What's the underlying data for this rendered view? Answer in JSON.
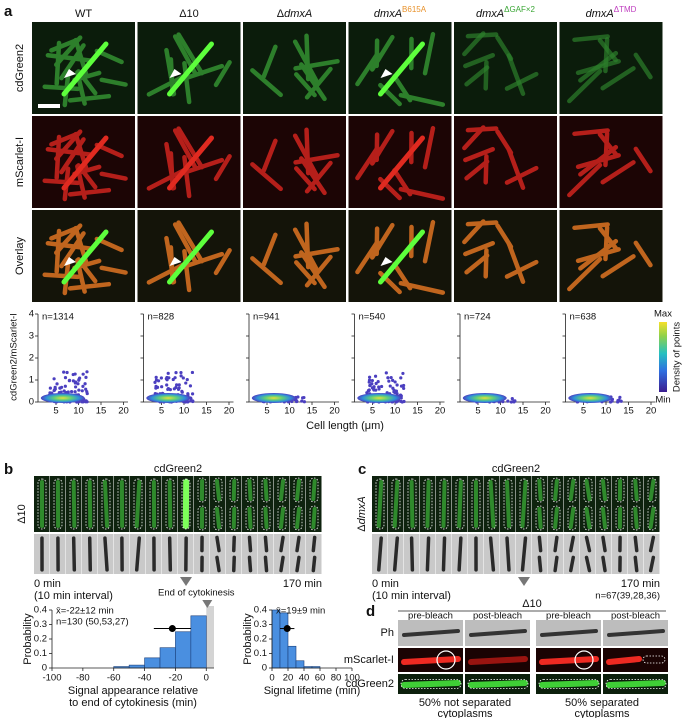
{
  "panel_a": {
    "label": "a",
    "columns": [
      {
        "pre": "WT"
      },
      {
        "pre": "Δ10"
      },
      {
        "pre": "Δ",
        "italic": "dmxA"
      },
      {
        "italic": "dmxA",
        "sup": "B615A",
        "sup_color": "#e8912a"
      },
      {
        "italic": "dmxA",
        "sup": "ΔGAF×2",
        "sup_color": "#3aa635"
      },
      {
        "italic": "dmxA",
        "sup": "ΔTMD",
        "sup_color": "#c040c0"
      }
    ],
    "rows": [
      "cdGreen2",
      "mScarlet-I",
      "Overlay"
    ],
    "scatter": {
      "ylabel": "cdGreen2/mScarlet-I",
      "xlabel": "Cell length (μm)",
      "xlim": [
        1,
        21
      ],
      "xticks": [
        5,
        10,
        15,
        20
      ],
      "ylim": [
        0,
        4
      ],
      "yticks": [
        0,
        1,
        2,
        3,
        4
      ],
      "n_labels": [
        "n=1314",
        "n=828",
        "n=941",
        "n=540",
        "n=724",
        "n=638"
      ],
      "colorbar": {
        "label": "Density of points",
        "max": "Max",
        "min": "Min"
      }
    }
  },
  "panel_b": {
    "label": "b",
    "title": "cdGreen2",
    "strain": "Δ10",
    "start": "0 min",
    "interval": "(10 min interval)",
    "end": "170 min"
  },
  "panel_c": {
    "label": "c",
    "title": "cdGreen2",
    "strain_pre": "Δ",
    "strain_italic": "dmxA",
    "start": "0 min",
    "interval": "(10 min interval)",
    "end": "170 min",
    "n": "n=67(39,28,36)"
  },
  "hist_appearance": {
    "type": "histogram",
    "ylabel": "Probability",
    "xlabel": [
      "Signal appearance relative",
      "to end of cytokinesis (min)"
    ],
    "marker": "End of cytokinesis",
    "stat": "x̄=-22±12 min",
    "n": "n=130 (50,53,27)",
    "mean": -22,
    "sd": 12,
    "color": "#4a8fe0",
    "bins": [
      -60,
      -50,
      -40,
      -30,
      -20,
      -10,
      0
    ],
    "values": [
      0.01,
      0.02,
      0.07,
      0.14,
      0.25,
      0.36
    ],
    "xlim": [
      -100,
      5
    ],
    "xticks": [
      -100,
      -80,
      -60,
      -40,
      -20,
      0
    ],
    "ylim": [
      0,
      0.4
    ],
    "yticks": [
      0,
      0.1,
      0.2,
      0.3,
      0.4
    ]
  },
  "hist_lifetime": {
    "type": "histogram",
    "ylabel": "Probability",
    "xlabel": [
      "Signal lifetime (min)"
    ],
    "stat": "x̄=19±9 min",
    "mean": 19,
    "sd": 9,
    "color": "#4a8fe0",
    "bins": [
      0,
      10,
      20,
      30,
      40,
      50,
      60
    ],
    "values": [
      0.4,
      0.38,
      0.15,
      0.05,
      0.01,
      0.01
    ],
    "xlim": [
      0,
      100
    ],
    "xticks": [
      0,
      20,
      40,
      60,
      80,
      100
    ],
    "ylim": [
      0,
      0.4
    ],
    "yticks": [
      0,
      0.1,
      0.2,
      0.3,
      0.4
    ]
  },
  "panel_d": {
    "label": "d",
    "strain": "Δ10",
    "headers": [
      "pre-bleach",
      "post-bleach",
      "pre-bleach",
      "post-bleach"
    ],
    "rows": [
      "Ph",
      "mScarlet-I",
      "cdGreen2"
    ],
    "captions": [
      [
        "50% not separated",
        "cytoplasms"
      ],
      [
        "50% separated",
        "cytoplasms"
      ]
    ]
  }
}
